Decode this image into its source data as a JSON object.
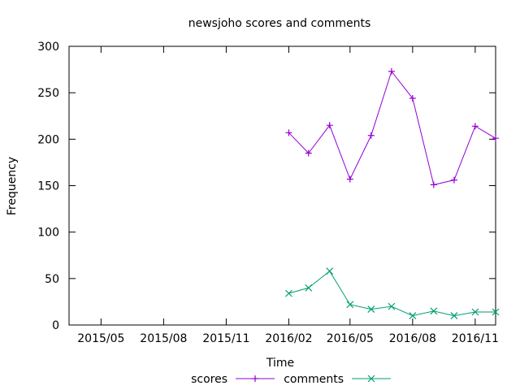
{
  "chart_data": {
    "type": "line",
    "title": "newsjoho scores and comments",
    "xlabel": "Time",
    "ylabel": "Frequency",
    "ylim": [
      0,
      300
    ],
    "xlim": [
      "2015-03-15",
      "2016-12-01"
    ],
    "grid": false,
    "legend_position": "bottom",
    "y_ticks": [
      "0",
      "50",
      "100",
      "150",
      "200",
      "250",
      "300"
    ],
    "x_ticks": [
      {
        "label": "2015/05",
        "date": "2015-05-01"
      },
      {
        "label": "2015/08",
        "date": "2015-08-01"
      },
      {
        "label": "2015/11",
        "date": "2015-11-01"
      },
      {
        "label": "2016/02",
        "date": "2016-02-01"
      },
      {
        "label": "2016/05",
        "date": "2016-05-01"
      },
      {
        "label": "2016/08",
        "date": "2016-08-01"
      },
      {
        "label": "2016/11",
        "date": "2016-11-01"
      }
    ],
    "x": [
      "2016-02-01",
      "2016-03-01",
      "2016-04-01",
      "2016-05-01",
      "2016-06-01",
      "2016-07-01",
      "2016-08-01",
      "2016-09-01",
      "2016-10-01",
      "2016-11-01",
      "2016-12-01"
    ],
    "series": [
      {
        "name": "scores",
        "color": "#9400d3",
        "marker": "plus",
        "values": [
          207,
          185,
          215,
          157,
          204,
          273,
          244,
          151,
          156,
          214,
          201
        ]
      },
      {
        "name": "comments",
        "color": "#009e73",
        "marker": "cross",
        "values": [
          34,
          40,
          58,
          22,
          17,
          20,
          10,
          15,
          10,
          14,
          14
        ]
      }
    ]
  }
}
